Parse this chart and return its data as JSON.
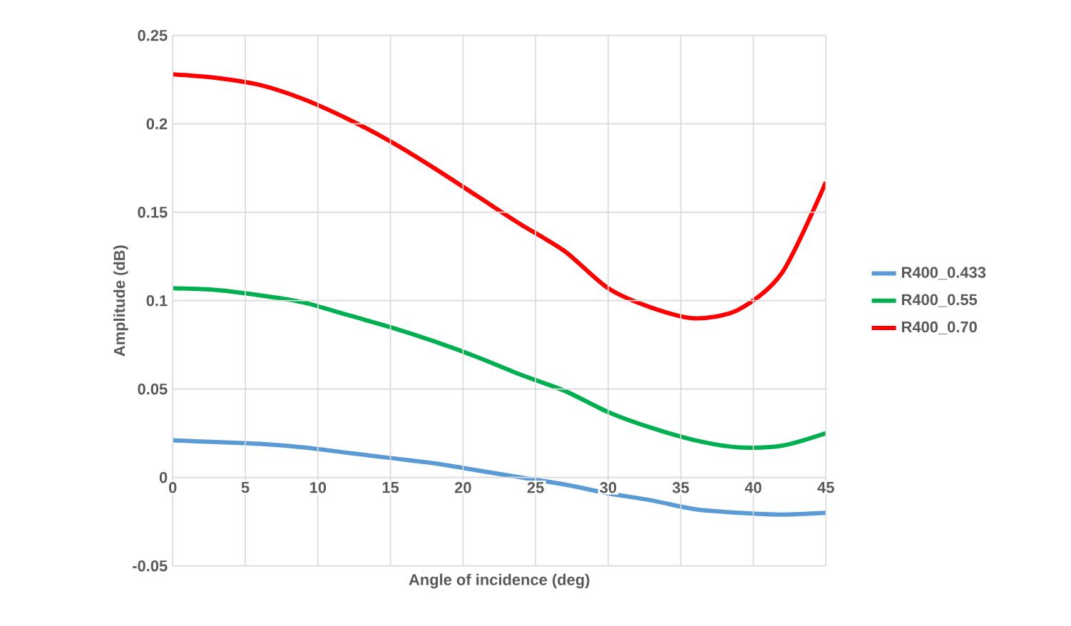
{
  "chart_data": {
    "type": "line",
    "xlabel": "Angle of incidence (deg)",
    "ylabel": "Amplitude (dB)",
    "x": [
      0,
      3,
      6,
      9,
      12,
      15,
      18,
      21,
      24,
      27,
      30,
      33,
      36,
      39,
      42,
      45
    ],
    "series": [
      {
        "name": "R400_0.433",
        "color": "#5b9bd5",
        "values": [
          0.021,
          0.02,
          0.019,
          0.017,
          0.014,
          0.011,
          0.008,
          0.004,
          0.0,
          -0.004,
          -0.009,
          -0.013,
          -0.018,
          -0.02,
          -0.021,
          -0.02
        ]
      },
      {
        "name": "R400_0.55",
        "color": "#00b050",
        "values": [
          0.107,
          0.106,
          0.103,
          0.099,
          0.092,
          0.085,
          0.077,
          0.068,
          0.058,
          0.049,
          0.037,
          0.028,
          0.021,
          0.017,
          0.018,
          0.025
        ]
      },
      {
        "name": "R400_0.70",
        "color": "#ff0000",
        "values": [
          0.228,
          0.226,
          0.222,
          0.214,
          0.203,
          0.19,
          0.175,
          0.159,
          0.143,
          0.128,
          0.107,
          0.096,
          0.09,
          0.095,
          0.116,
          0.167
        ]
      }
    ],
    "xlim": [
      0,
      45
    ],
    "ylim": [
      -0.05,
      0.25
    ],
    "xticks": [
      0,
      5,
      10,
      15,
      20,
      25,
      30,
      35,
      40,
      45
    ],
    "yticks": [
      -0.05,
      0,
      0.05,
      0.1,
      0.15,
      0.2,
      0.25
    ],
    "grid": true,
    "legend": "right",
    "marker": "none",
    "line_style": "solid"
  }
}
